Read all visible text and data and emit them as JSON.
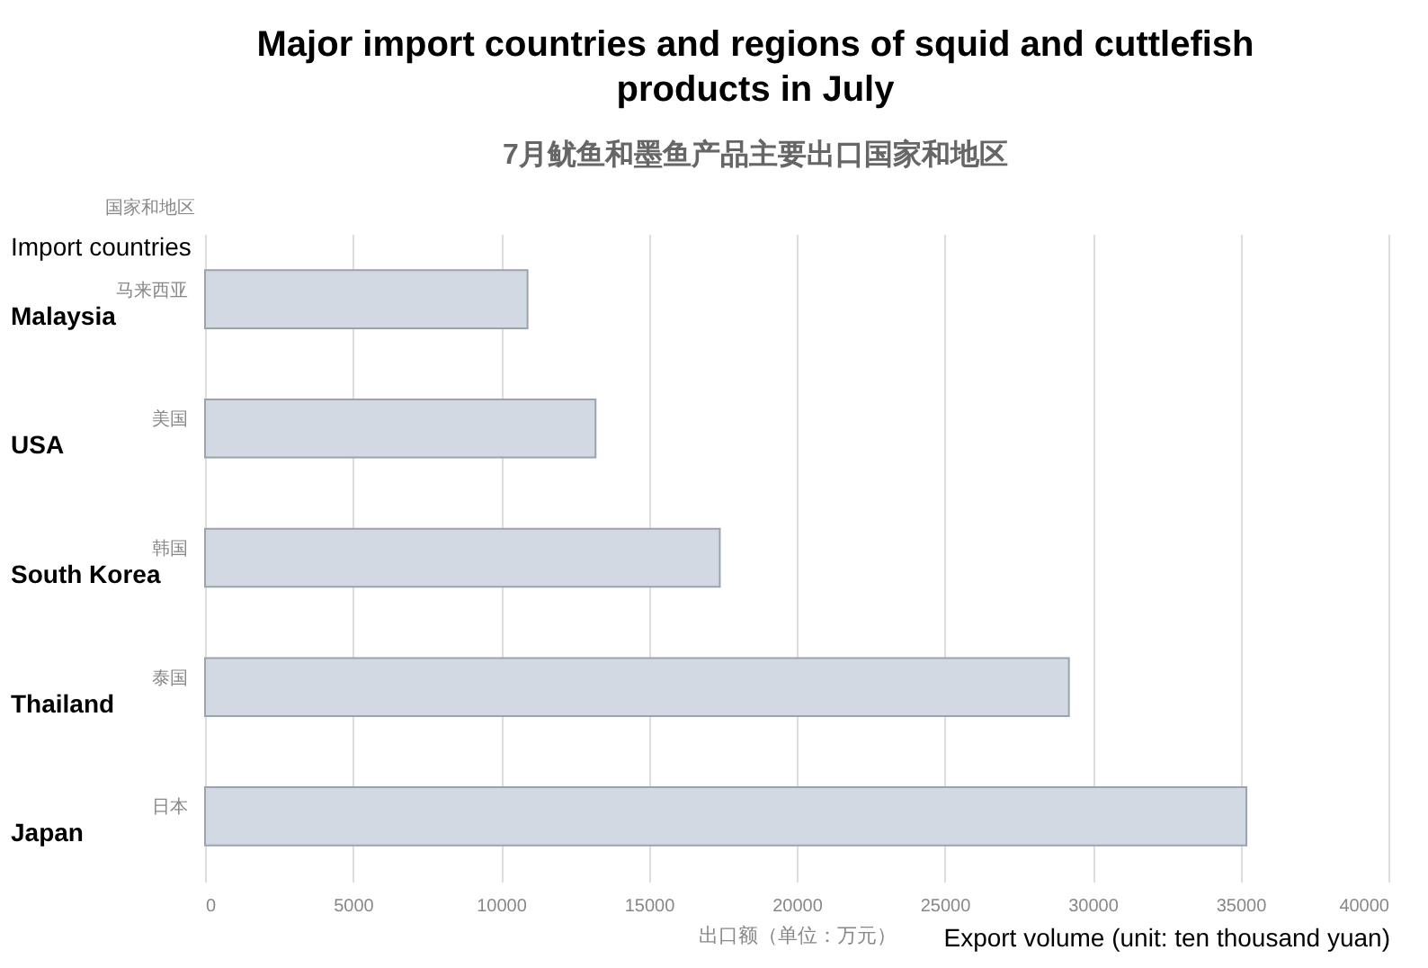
{
  "chart_data": {
    "type": "bar",
    "orientation": "horizontal",
    "title": "Major import countries and regions of squid and cuttlefish products in July",
    "subtitle": "7月鱿鱼和墨鱼产品主要出口国家和地区",
    "ylabel": "国家和地区",
    "xlabel": "出口额（单位：万元）",
    "categories": [
      "马来西亚",
      "美国",
      "韩国",
      "泰国",
      "日本"
    ],
    "values": [
      10900,
      13200,
      17400,
      29200,
      35200
    ],
    "color": "#d3d9e3",
    "xlim": [
      0,
      40000
    ],
    "xticks": [
      0,
      5000,
      10000,
      15000,
      20000,
      25000,
      30000,
      35000,
      40000
    ],
    "grid": "x",
    "annotations": [
      "Import countries",
      "Export volume (unit: ten thousand yuan)",
      "Malaysia",
      "USA",
      "South Korea",
      "Thailand",
      "Japan"
    ]
  }
}
